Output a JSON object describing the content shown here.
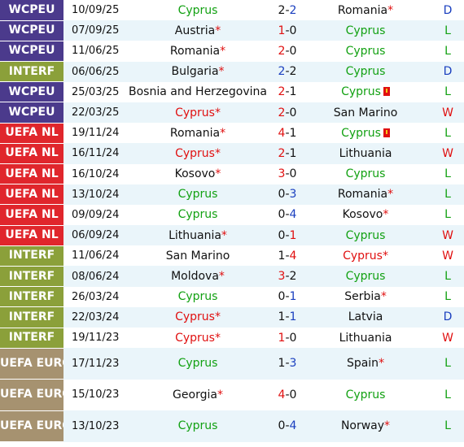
{
  "colors": {
    "WCPEU": "#4b3a8c",
    "INTERF": "#8ba03a",
    "UEFA NL": "#e0262c",
    "UEFA EURO": "#a69270",
    "row_alt": "#eaf5fa",
    "cyprus": "#12a112",
    "loss_score": "#e01010",
    "win_score": "#1a3fbf"
  },
  "matches": [
    {
      "comp": "WCPEU",
      "date": "10/09/25",
      "home": "Cyprus",
      "home_star": "",
      "home_card": false,
      "score_h": "2",
      "score_a": "2",
      "away": "Romania",
      "away_star": "*",
      "away_card": false,
      "result": "D"
    },
    {
      "comp": "WCPEU",
      "date": "07/09/25",
      "home": "Austria",
      "home_star": "*",
      "home_card": false,
      "score_h": "1",
      "score_a": "0",
      "away": "Cyprus",
      "away_star": "",
      "away_card": false,
      "result": "L"
    },
    {
      "comp": "WCPEU",
      "date": "11/06/25",
      "home": "Romania",
      "home_star": "*",
      "home_card": false,
      "score_h": "2",
      "score_a": "0",
      "away": "Cyprus",
      "away_star": "",
      "away_card": false,
      "result": "L"
    },
    {
      "comp": "INTERF",
      "date": "06/06/25",
      "home": "Bulgaria",
      "home_star": "*",
      "home_card": false,
      "score_h": "2",
      "score_a": "2",
      "away": "Cyprus",
      "away_star": "",
      "away_card": false,
      "result": "D"
    },
    {
      "comp": "WCPEU",
      "date": "25/03/25",
      "home": "Bosnia and Herzegovina",
      "home_star": "*",
      "home_card": false,
      "score_h": "2",
      "score_a": "1",
      "away": "Cyprus",
      "away_star": "",
      "away_card": true,
      "result": "L"
    },
    {
      "comp": "WCPEU",
      "date": "22/03/25",
      "home": "Cyprus",
      "home_star": "*",
      "home_card": false,
      "score_h": "2",
      "score_a": "0",
      "away": "San Marino",
      "away_star": "",
      "away_card": false,
      "result": "W"
    },
    {
      "comp": "UEFA NL",
      "date": "19/11/24",
      "home": "Romania",
      "home_star": "*",
      "home_card": false,
      "score_h": "4",
      "score_a": "1",
      "away": "Cyprus",
      "away_star": "",
      "away_card": true,
      "result": "L"
    },
    {
      "comp": "UEFA NL",
      "date": "16/11/24",
      "home": "Cyprus",
      "home_star": "*",
      "home_card": false,
      "score_h": "2",
      "score_a": "1",
      "away": "Lithuania",
      "away_star": "",
      "away_card": false,
      "result": "W"
    },
    {
      "comp": "UEFA NL",
      "date": "16/10/24",
      "home": "Kosovo",
      "home_star": "*",
      "home_card": false,
      "score_h": "3",
      "score_a": "0",
      "away": "Cyprus",
      "away_star": "",
      "away_card": false,
      "result": "L"
    },
    {
      "comp": "UEFA NL",
      "date": "13/10/24",
      "home": "Cyprus",
      "home_star": "",
      "home_card": false,
      "score_h": "0",
      "score_a": "3",
      "away": "Romania",
      "away_star": "*",
      "away_card": false,
      "result": "L"
    },
    {
      "comp": "UEFA NL",
      "date": "09/09/24",
      "home": "Cyprus",
      "home_star": "",
      "home_card": false,
      "score_h": "0",
      "score_a": "4",
      "away": "Kosovo",
      "away_star": "*",
      "away_card": false,
      "result": "L"
    },
    {
      "comp": "UEFA NL",
      "date": "06/09/24",
      "home": "Lithuania",
      "home_star": "*",
      "home_card": false,
      "score_h": "0",
      "score_a": "1",
      "away": "Cyprus",
      "away_star": "",
      "away_card": false,
      "result": "W"
    },
    {
      "comp": "INTERF",
      "date": "11/06/24",
      "home": "San Marino",
      "home_star": "",
      "home_card": false,
      "score_h": "1",
      "score_a": "4",
      "away": "Cyprus",
      "away_star": "*",
      "away_card": false,
      "result": "W"
    },
    {
      "comp": "INTERF",
      "date": "08/06/24",
      "home": "Moldova",
      "home_star": "*",
      "home_card": false,
      "score_h": "3",
      "score_a": "2",
      "away": "Cyprus",
      "away_star": "",
      "away_card": false,
      "result": "L"
    },
    {
      "comp": "INTERF",
      "date": "26/03/24",
      "home": "Cyprus",
      "home_star": "",
      "home_card": false,
      "score_h": "0",
      "score_a": "1",
      "away": "Serbia",
      "away_star": "*",
      "away_card": false,
      "result": "L"
    },
    {
      "comp": "INTERF",
      "date": "22/03/24",
      "home": "Cyprus",
      "home_star": "*",
      "home_card": false,
      "score_h": "1",
      "score_a": "1",
      "away": "Latvia",
      "away_star": "",
      "away_card": false,
      "result": "D"
    },
    {
      "comp": "INTERF",
      "date": "19/11/23",
      "home": "Cyprus",
      "home_star": "*",
      "home_card": false,
      "score_h": "1",
      "score_a": "0",
      "away": "Lithuania",
      "away_star": "",
      "away_card": false,
      "result": "W"
    },
    {
      "comp": "UEFA EURO",
      "date": "17/11/23",
      "home": "Cyprus",
      "home_star": "",
      "home_card": false,
      "score_h": "1",
      "score_a": "3",
      "away": "Spain",
      "away_star": "*",
      "away_card": false,
      "result": "L"
    },
    {
      "comp": "UEFA EURO",
      "date": "15/10/23",
      "home": "Georgia",
      "home_star": "*",
      "home_card": false,
      "score_h": "4",
      "score_a": "0",
      "away": "Cyprus",
      "away_star": "",
      "away_card": false,
      "result": "L"
    },
    {
      "comp": "UEFA EURO",
      "date": "13/10/23",
      "home": "Cyprus",
      "home_star": "",
      "home_card": false,
      "score_h": "0",
      "score_a": "4",
      "away": "Norway",
      "away_star": "*",
      "away_card": false,
      "result": "L"
    }
  ]
}
